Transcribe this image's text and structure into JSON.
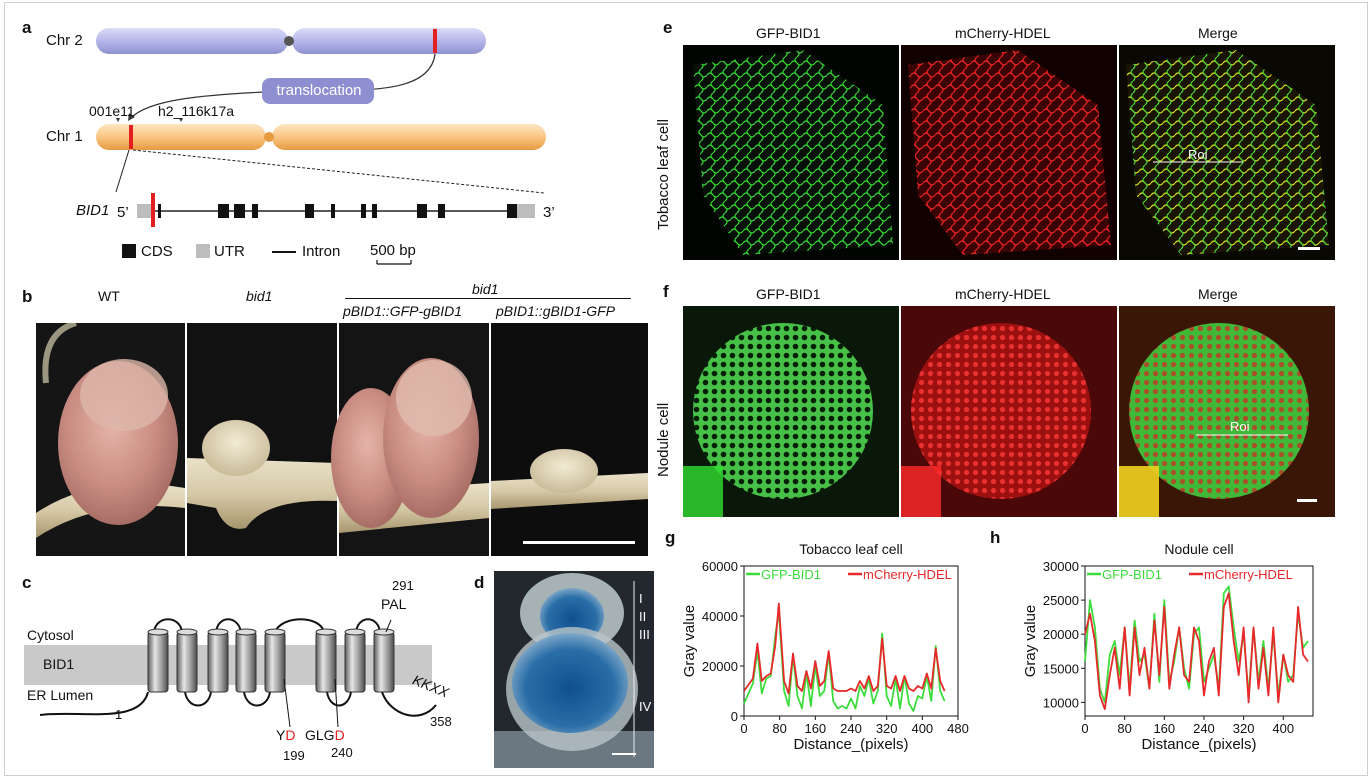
{
  "panels": {
    "a": {
      "label": "a",
      "chr2": "Chr 2",
      "chr1": "Chr 1",
      "translocation": "translocation",
      "marker1": "001e11",
      "marker2": "h2_116k17a",
      "gene": "BID1",
      "five_prime": "5’",
      "three_prime": "3’",
      "legend_cds": "CDS",
      "legend_utr": "UTR",
      "legend_intron": "Intron",
      "scale": "500 bp"
    },
    "b": {
      "label": "b",
      "wt": "WT",
      "bid1": "bid1",
      "bid1_group": "bid1",
      "construct1": "pBID1::GFP-gBID1",
      "construct2": "pBID1::gBID1-GFP"
    },
    "c": {
      "label": "c",
      "cytosol": "Cytosol",
      "protein": "BID1",
      "er_lumen": "ER Lumen",
      "n_term": "1",
      "c_term": "358",
      "pal": "PAL",
      "pal_pos": "291",
      "kkxx": "KKXX",
      "yd_y": "Y",
      "yd_d": "D",
      "yd_pos": "199",
      "glgd_glg": "GLG",
      "glgd_d": "D",
      "glgd_pos": "240"
    },
    "d": {
      "label": "d",
      "zones": [
        "I",
        "II",
        "III",
        "IV"
      ]
    },
    "e": {
      "label": "e",
      "row_label": "Tobacco leaf cell",
      "col1": "GFP-BID1",
      "col2": "mCherry-HDEL",
      "col3": "Merge",
      "roi": "Roi"
    },
    "f": {
      "label": "f",
      "row_label": "Nodule cell",
      "col1": "GFP-BID1",
      "col2": "mCherry-HDEL",
      "col3": "Merge",
      "roi": "Roi"
    },
    "g": {
      "label": "g"
    },
    "h": {
      "label": "h"
    }
  },
  "colors": {
    "gfp": "#3ddc3d",
    "mcherry": "#e8282a",
    "chr2": "#a9abe0",
    "chr1": "#f6b86a",
    "marker_red": "#e32020",
    "utr": "#bdbdbd",
    "gus_blue": "#1f5f9e"
  },
  "chart_data": [
    {
      "type": "line",
      "title": "Tobacco leaf cell",
      "xlabel": "Distance_(pixels)",
      "ylabel": "Gray value",
      "xlim": [
        0,
        480
      ],
      "ylim": [
        0,
        60000
      ],
      "xticks": [
        0,
        80,
        160,
        240,
        320,
        400,
        480
      ],
      "yticks": [
        0,
        20000,
        40000,
        60000
      ],
      "legend": "top",
      "x": [
        0,
        20,
        30,
        40,
        50,
        60,
        70,
        78,
        90,
        100,
        110,
        120,
        130,
        140,
        150,
        160,
        170,
        180,
        190,
        200,
        210,
        220,
        230,
        240,
        250,
        260,
        270,
        280,
        290,
        300,
        310,
        320,
        330,
        340,
        350,
        360,
        370,
        380,
        390,
        400,
        410,
        420,
        430,
        440,
        450
      ],
      "series": [
        {
          "name": "GFP-BID1",
          "color": "#3ddc3d",
          "values": [
            5000,
            13000,
            26000,
            9000,
            15000,
            16000,
            32000,
            42000,
            10000,
            4000,
            24000,
            8000,
            3000,
            17000,
            4000,
            20000,
            8000,
            10000,
            25000,
            6000,
            3000,
            4000,
            3000,
            7000,
            3000,
            12000,
            8000,
            15000,
            5000,
            10000,
            33000,
            8000,
            4000,
            15000,
            3000,
            16000,
            5000,
            2000,
            8000,
            7000,
            16000,
            6000,
            28000,
            10000,
            6000
          ]
        },
        {
          "name": "mCherry-HDEL",
          "color": "#e8282a",
          "values": [
            10000,
            15000,
            29000,
            14000,
            16000,
            17000,
            28000,
            45000,
            14000,
            9000,
            25000,
            12000,
            10000,
            18000,
            11000,
            22000,
            12000,
            14000,
            26000,
            11000,
            10000,
            10000,
            10000,
            11000,
            10000,
            14000,
            11000,
            16000,
            10000,
            12000,
            31000,
            12000,
            11000,
            16000,
            10000,
            16000,
            11000,
            10000,
            12000,
            11000,
            17000,
            11000,
            27000,
            14000,
            10000
          ]
        }
      ]
    },
    {
      "type": "line",
      "title": "Nodule cell",
      "xlabel": "Distance_(pixels)",
      "ylabel": "Gray value",
      "xlim": [
        0,
        460
      ],
      "ylim": [
        8000,
        30000
      ],
      "xticks": [
        0,
        80,
        160,
        240,
        320,
        400
      ],
      "yticks": [
        10000,
        15000,
        20000,
        25000,
        30000
      ],
      "legend": "top",
      "x": [
        0,
        10,
        20,
        30,
        40,
        50,
        60,
        70,
        80,
        90,
        100,
        110,
        120,
        130,
        140,
        150,
        160,
        170,
        180,
        190,
        200,
        210,
        220,
        230,
        240,
        250,
        260,
        270,
        280,
        290,
        300,
        310,
        320,
        330,
        340,
        350,
        360,
        370,
        380,
        390,
        400,
        410,
        420,
        430,
        440,
        450
      ],
      "series": [
        {
          "name": "GFP-BID1",
          "color": "#3ddc3d",
          "values": [
            16000,
            25000,
            21000,
            12000,
            10000,
            17000,
            19000,
            14000,
            21000,
            12000,
            22000,
            16000,
            17000,
            12000,
            23000,
            13000,
            25000,
            13000,
            16000,
            21000,
            15000,
            12000,
            20000,
            21000,
            13000,
            15000,
            17000,
            12000,
            26000,
            27000,
            21000,
            16000,
            20000,
            11000,
            21000,
            13000,
            19000,
            12000,
            20000,
            11000,
            17000,
            13000,
            14000,
            23000,
            18000,
            19000
          ]
        },
        {
          "name": "mCherry-HDEL",
          "color": "#e8282a",
          "values": [
            20000,
            23000,
            19000,
            11000,
            9000,
            14000,
            18000,
            12000,
            21000,
            11000,
            21000,
            14000,
            18000,
            12000,
            22000,
            14000,
            24000,
            12000,
            17000,
            21000,
            14000,
            13000,
            21000,
            19000,
            11000,
            16000,
            18000,
            11000,
            24000,
            26000,
            19000,
            14000,
            21000,
            10000,
            21000,
            12000,
            18000,
            11000,
            21000,
            10000,
            17000,
            14000,
            13000,
            24000,
            17000,
            16000
          ]
        }
      ]
    }
  ]
}
